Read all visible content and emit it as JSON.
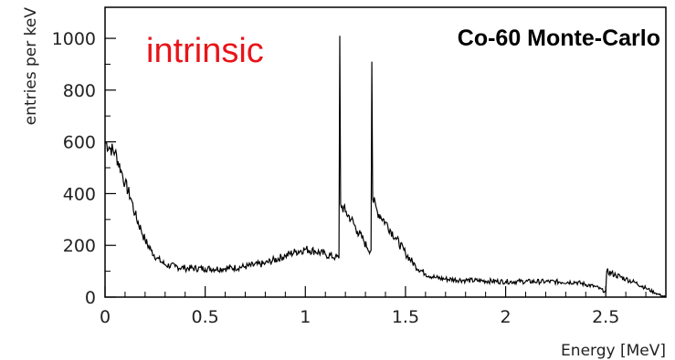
{
  "chart_data": {
    "type": "line",
    "title": "Co-60 Monte-Carlo",
    "annotation": "intrinsic",
    "annotation_color": "#e8141a",
    "xlabel": "Energy [MeV]",
    "ylabel": "entries per keV",
    "xlim": [
      0,
      2.8
    ],
    "ylim": [
      0,
      1120
    ],
    "x_ticks": [
      {
        "value": 0,
        "label": "0"
      },
      {
        "value": 0.5,
        "label": "0.5"
      },
      {
        "value": 1,
        "label": "1"
      },
      {
        "value": 1.5,
        "label": "1.5"
      },
      {
        "value": 2,
        "label": "2"
      },
      {
        "value": 2.5,
        "label": "2.5"
      }
    ],
    "y_ticks": [
      {
        "value": 0,
        "label": "0"
      },
      {
        "value": 200,
        "label": "200"
      },
      {
        "value": 400,
        "label": "400"
      },
      {
        "value": 600,
        "label": "600"
      },
      {
        "value": 800,
        "label": "800"
      },
      {
        "value": 1000,
        "label": "1000"
      }
    ],
    "grid": false,
    "line_color": "#000000",
    "series": [
      {
        "points": [
          [
            0.0,
            600
          ],
          [
            0.02,
            580
          ],
          [
            0.05,
            560
          ],
          [
            0.08,
            490
          ],
          [
            0.1,
            440
          ],
          [
            0.13,
            380
          ],
          [
            0.15,
            320
          ],
          [
            0.18,
            260
          ],
          [
            0.2,
            220
          ],
          [
            0.23,
            180
          ],
          [
            0.26,
            150
          ],
          [
            0.3,
            125
          ],
          [
            0.35,
            118
          ],
          [
            0.4,
            112
          ],
          [
            0.5,
            110
          ],
          [
            0.6,
            110
          ],
          [
            0.7,
            118
          ],
          [
            0.8,
            130
          ],
          [
            0.9,
            160
          ],
          [
            0.95,
            175
          ],
          [
            1.0,
            185
          ],
          [
            1.05,
            178
          ],
          [
            1.1,
            165
          ],
          [
            1.15,
            155
          ],
          [
            1.168,
            150
          ],
          [
            1.172,
            1010
          ],
          [
            1.176,
            360
          ],
          [
            1.2,
            330
          ],
          [
            1.23,
            300
          ],
          [
            1.26,
            255
          ],
          [
            1.29,
            220
          ],
          [
            1.31,
            190
          ],
          [
            1.328,
            180
          ],
          [
            1.332,
            910
          ],
          [
            1.336,
            380
          ],
          [
            1.36,
            330
          ],
          [
            1.4,
            290
          ],
          [
            1.45,
            230
          ],
          [
            1.5,
            170
          ],
          [
            1.55,
            120
          ],
          [
            1.6,
            90
          ],
          [
            1.65,
            75
          ],
          [
            1.7,
            70
          ],
          [
            1.8,
            65
          ],
          [
            2.0,
            60
          ],
          [
            2.2,
            60
          ],
          [
            2.35,
            58
          ],
          [
            2.45,
            40
          ],
          [
            2.5,
            20
          ],
          [
            2.505,
            100
          ],
          [
            2.55,
            85
          ],
          [
            2.6,
            70
          ],
          [
            2.65,
            55
          ],
          [
            2.7,
            35
          ],
          [
            2.75,
            15
          ],
          [
            2.8,
            0
          ]
        ]
      }
    ]
  }
}
